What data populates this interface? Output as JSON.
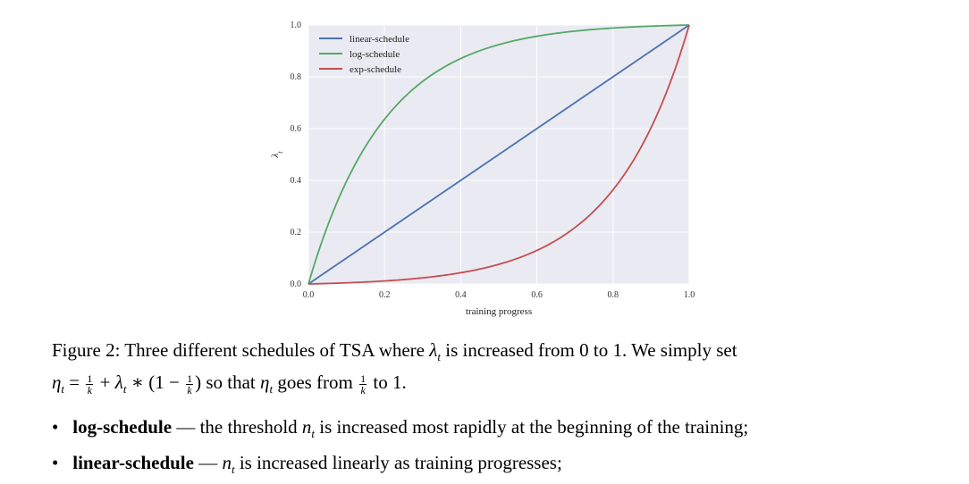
{
  "chart_data": {
    "type": "line",
    "xlabel": "training progress",
    "ylabel": "λ_t",
    "xlim": [
      0.0,
      1.0
    ],
    "ylim": [
      0.0,
      1.0
    ],
    "x_ticks": [
      "0.0",
      "0.2",
      "0.4",
      "0.6",
      "0.8",
      "1.0"
    ],
    "y_ticks": [
      "0.0",
      "0.2",
      "0.4",
      "0.6",
      "0.8",
      "1.0"
    ],
    "grid": true,
    "legend_position": "top-left",
    "background": "#eaeaf2",
    "series": [
      {
        "name": "linear-schedule",
        "color": "#4c72b0",
        "formula": "linear",
        "x": [
          0.0,
          0.2,
          0.4,
          0.6,
          0.8,
          1.0
        ],
        "y": [
          0.0,
          0.2,
          0.4,
          0.6,
          0.8,
          1.0
        ]
      },
      {
        "name": "log-schedule",
        "color": "#55a868",
        "formula": "log",
        "x": [
          0.0,
          0.2,
          0.4,
          0.6,
          0.8,
          1.0
        ],
        "y": [
          0.0,
          0.63,
          0.86,
          0.95,
          0.98,
          1.0
        ]
      },
      {
        "name": "exp-schedule",
        "color": "#c44e52",
        "formula": "exp",
        "x": [
          0.0,
          0.2,
          0.4,
          0.6,
          0.8,
          1.0
        ],
        "y": [
          0.0,
          0.02,
          0.05,
          0.14,
          0.37,
          1.0
        ]
      }
    ]
  },
  "caption": {
    "label": "Figure 2:",
    "text1": "Three different schedules of TSA where",
    "lambda": "λ",
    "sub_t": "t",
    "text2": "is increased from",
    "zero": "0",
    "to": "to",
    "one": "1.",
    "text3": "We simply set",
    "eta": "η",
    "eq": "=",
    "frac_num": "1",
    "frac_den": "k",
    "plus": "+",
    "times": "∗ (1 −",
    "close": ")",
    "text4": "so that",
    "text5": "goes from",
    "text6": "to 1."
  },
  "bullets": [
    {
      "term": "log-schedule",
      "dash": "—",
      "pre": "the threshold",
      "var": "n",
      "sub": "t",
      "post": "is increased most rapidly at the beginning of the training;"
    },
    {
      "term": "linear-schedule",
      "dash": "—",
      "pre": "",
      "var": "n",
      "sub": "t",
      "post": "is increased linearly as training progresses;"
    }
  ]
}
